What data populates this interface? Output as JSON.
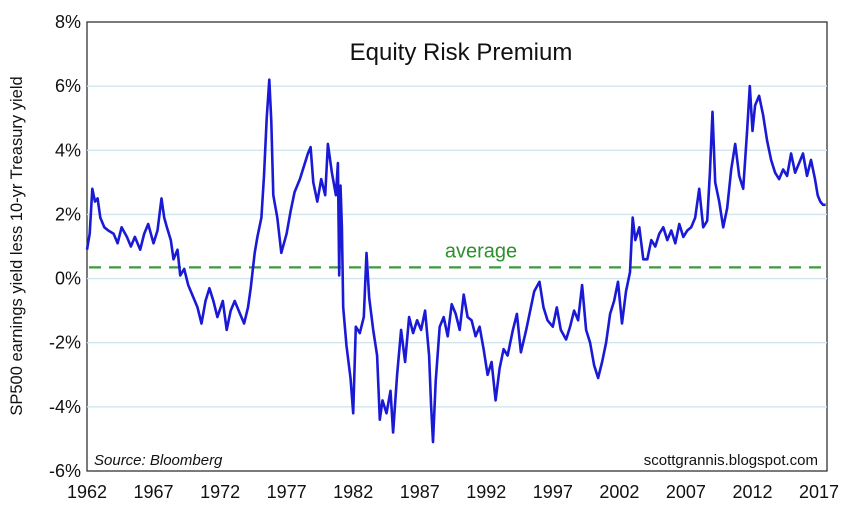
{
  "chart_data": {
    "type": "line",
    "title": "Equity Risk Premium",
    "ylabel": "SP500 earnings yield less 10-yr Treasury yield",
    "source": "Source: Bloomberg",
    "website": "scottgrannis.blogspot.com",
    "xlim": [
      1962,
      2017.6
    ],
    "ylim": [
      -6,
      8
    ],
    "x_ticks": [
      1962,
      1967,
      1972,
      1977,
      1982,
      1987,
      1992,
      1997,
      2002,
      2007,
      2012,
      2017
    ],
    "x_tick_labels": [
      "1962",
      "1967",
      "1972",
      "1977",
      "1982",
      "1987",
      "1992",
      "1997",
      "2002",
      "2007",
      "2012",
      "2017"
    ],
    "y_ticks": [
      -6,
      -4,
      -2,
      0,
      2,
      4,
      6,
      8
    ],
    "y_tick_labels": [
      "-6%",
      "-4%",
      "-2%",
      "0%",
      "2%",
      "4%",
      "6%",
      "8%"
    ],
    "grid": true,
    "colors": {
      "series": "#1a1ad6",
      "average": "#3c9a3c",
      "grid": "#cfe6ee"
    },
    "average": {
      "label": "average",
      "value": 0.35
    },
    "series": [
      {
        "values": [
          [
            1962.0,
            0.9
          ],
          [
            1962.2,
            1.4
          ],
          [
            1962.4,
            2.8
          ],
          [
            1962.6,
            2.4
          ],
          [
            1962.8,
            2.5
          ],
          [
            1963.0,
            1.9
          ],
          [
            1963.3,
            1.6
          ],
          [
            1963.6,
            1.5
          ],
          [
            1964.0,
            1.4
          ],
          [
            1964.3,
            1.1
          ],
          [
            1964.6,
            1.6
          ],
          [
            1965.0,
            1.3
          ],
          [
            1965.3,
            1.0
          ],
          [
            1965.6,
            1.3
          ],
          [
            1966.0,
            0.9
          ],
          [
            1966.3,
            1.4
          ],
          [
            1966.6,
            1.7
          ],
          [
            1967.0,
            1.1
          ],
          [
            1967.3,
            1.5
          ],
          [
            1967.6,
            2.5
          ],
          [
            1967.8,
            1.9
          ],
          [
            1968.0,
            1.6
          ],
          [
            1968.3,
            1.2
          ],
          [
            1968.5,
            0.6
          ],
          [
            1968.8,
            0.9
          ],
          [
            1969.0,
            0.1
          ],
          [
            1969.3,
            0.3
          ],
          [
            1969.6,
            -0.2
          ],
          [
            1970.0,
            -0.6
          ],
          [
            1970.3,
            -0.9
          ],
          [
            1970.6,
            -1.4
          ],
          [
            1970.9,
            -0.7
          ],
          [
            1971.2,
            -0.3
          ],
          [
            1971.5,
            -0.7
          ],
          [
            1971.8,
            -1.2
          ],
          [
            1972.2,
            -0.7
          ],
          [
            1972.5,
            -1.6
          ],
          [
            1972.8,
            -1.0
          ],
          [
            1973.1,
            -0.7
          ],
          [
            1973.4,
            -1.0
          ],
          [
            1973.8,
            -1.4
          ],
          [
            1974.1,
            -0.9
          ],
          [
            1974.3,
            -0.3
          ],
          [
            1974.6,
            0.8
          ],
          [
            1974.8,
            1.3
          ],
          [
            1975.1,
            1.9
          ],
          [
            1975.3,
            3.2
          ],
          [
            1975.5,
            5.0
          ],
          [
            1975.7,
            6.2
          ],
          [
            1975.85,
            4.9
          ],
          [
            1976.0,
            2.6
          ],
          [
            1976.3,
            1.9
          ],
          [
            1976.6,
            0.8
          ],
          [
            1977.0,
            1.4
          ],
          [
            1977.3,
            2.1
          ],
          [
            1977.6,
            2.7
          ],
          [
            1978.0,
            3.1
          ],
          [
            1978.3,
            3.5
          ],
          [
            1978.6,
            3.9
          ],
          [
            1978.8,
            4.1
          ],
          [
            1979.0,
            3.0
          ],
          [
            1979.3,
            2.4
          ],
          [
            1979.6,
            3.1
          ],
          [
            1979.9,
            2.6
          ],
          [
            1980.1,
            4.2
          ],
          [
            1980.4,
            3.3
          ],
          [
            1980.7,
            2.6
          ],
          [
            1980.85,
            3.6
          ],
          [
            1980.95,
            0.1
          ],
          [
            1981.05,
            2.9
          ],
          [
            1981.15,
            1.6
          ],
          [
            1981.25,
            -0.9
          ],
          [
            1981.5,
            -2.1
          ],
          [
            1981.8,
            -3.1
          ],
          [
            1982.0,
            -4.2
          ],
          [
            1982.2,
            -1.5
          ],
          [
            1982.5,
            -1.7
          ],
          [
            1982.8,
            -1.2
          ],
          [
            1983.0,
            0.8
          ],
          [
            1983.2,
            -0.6
          ],
          [
            1983.5,
            -1.6
          ],
          [
            1983.8,
            -2.4
          ],
          [
            1984.0,
            -4.4
          ],
          [
            1984.2,
            -3.8
          ],
          [
            1984.5,
            -4.2
          ],
          [
            1984.8,
            -3.5
          ],
          [
            1985.0,
            -4.8
          ],
          [
            1985.3,
            -3.0
          ],
          [
            1985.6,
            -1.6
          ],
          [
            1985.9,
            -2.6
          ],
          [
            1986.2,
            -1.2
          ],
          [
            1986.5,
            -1.7
          ],
          [
            1986.8,
            -1.3
          ],
          [
            1987.1,
            -1.6
          ],
          [
            1987.4,
            -1.0
          ],
          [
            1987.7,
            -2.4
          ],
          [
            1987.85,
            -3.9
          ],
          [
            1988.0,
            -5.1
          ],
          [
            1988.2,
            -3.2
          ],
          [
            1988.5,
            -1.5
          ],
          [
            1988.8,
            -1.2
          ],
          [
            1989.1,
            -1.8
          ],
          [
            1989.4,
            -0.8
          ],
          [
            1989.7,
            -1.1
          ],
          [
            1990.0,
            -1.6
          ],
          [
            1990.3,
            -0.5
          ],
          [
            1990.6,
            -1.2
          ],
          [
            1990.9,
            -1.3
          ],
          [
            1991.2,
            -1.8
          ],
          [
            1991.5,
            -1.5
          ],
          [
            1991.8,
            -2.2
          ],
          [
            1992.1,
            -3.0
          ],
          [
            1992.4,
            -2.6
          ],
          [
            1992.7,
            -3.8
          ],
          [
            1993.0,
            -2.8
          ],
          [
            1993.3,
            -2.2
          ],
          [
            1993.6,
            -2.4
          ],
          [
            1994.0,
            -1.6
          ],
          [
            1994.3,
            -1.1
          ],
          [
            1994.6,
            -2.3
          ],
          [
            1995.0,
            -1.6
          ],
          [
            1995.3,
            -1.0
          ],
          [
            1995.6,
            -0.4
          ],
          [
            1996.0,
            -0.1
          ],
          [
            1996.3,
            -0.9
          ],
          [
            1996.6,
            -1.3
          ],
          [
            1997.0,
            -1.5
          ],
          [
            1997.3,
            -0.9
          ],
          [
            1997.6,
            -1.6
          ],
          [
            1998.0,
            -1.9
          ],
          [
            1998.3,
            -1.5
          ],
          [
            1998.6,
            -1.0
          ],
          [
            1998.9,
            -1.3
          ],
          [
            1999.2,
            -0.2
          ],
          [
            1999.5,
            -1.6
          ],
          [
            1999.8,
            -2.0
          ],
          [
            2000.1,
            -2.7
          ],
          [
            2000.4,
            -3.1
          ],
          [
            2000.7,
            -2.6
          ],
          [
            2001.0,
            -2.0
          ],
          [
            2001.3,
            -1.1
          ],
          [
            2001.6,
            -0.7
          ],
          [
            2001.9,
            -0.1
          ],
          [
            2002.2,
            -1.4
          ],
          [
            2002.5,
            -0.4
          ],
          [
            2002.8,
            0.2
          ],
          [
            2003.0,
            1.9
          ],
          [
            2003.2,
            1.2
          ],
          [
            2003.5,
            1.6
          ],
          [
            2003.8,
            0.6
          ],
          [
            2004.1,
            0.6
          ],
          [
            2004.4,
            1.2
          ],
          [
            2004.7,
            1.0
          ],
          [
            2005.0,
            1.4
          ],
          [
            2005.3,
            1.6
          ],
          [
            2005.6,
            1.2
          ],
          [
            2005.9,
            1.5
          ],
          [
            2006.2,
            1.1
          ],
          [
            2006.5,
            1.7
          ],
          [
            2006.8,
            1.3
          ],
          [
            2007.1,
            1.5
          ],
          [
            2007.4,
            1.6
          ],
          [
            2007.7,
            1.9
          ],
          [
            2008.0,
            2.8
          ],
          [
            2008.3,
            1.6
          ],
          [
            2008.6,
            1.8
          ],
          [
            2008.8,
            3.3
          ],
          [
            2009.0,
            5.2
          ],
          [
            2009.2,
            3.0
          ],
          [
            2009.5,
            2.4
          ],
          [
            2009.8,
            1.6
          ],
          [
            2010.1,
            2.2
          ],
          [
            2010.4,
            3.4
          ],
          [
            2010.7,
            4.2
          ],
          [
            2011.0,
            3.2
          ],
          [
            2011.3,
            2.8
          ],
          [
            2011.6,
            4.6
          ],
          [
            2011.8,
            6.0
          ],
          [
            2012.0,
            4.6
          ],
          [
            2012.2,
            5.4
          ],
          [
            2012.5,
            5.7
          ],
          [
            2012.8,
            5.1
          ],
          [
            2013.1,
            4.3
          ],
          [
            2013.4,
            3.7
          ],
          [
            2013.7,
            3.3
          ],
          [
            2014.0,
            3.1
          ],
          [
            2014.3,
            3.4
          ],
          [
            2014.6,
            3.2
          ],
          [
            2014.9,
            3.9
          ],
          [
            2015.2,
            3.3
          ],
          [
            2015.5,
            3.6
          ],
          [
            2015.8,
            3.9
          ],
          [
            2016.1,
            3.2
          ],
          [
            2016.4,
            3.7
          ],
          [
            2016.7,
            3.1
          ],
          [
            2016.9,
            2.6
          ],
          [
            2017.1,
            2.4
          ],
          [
            2017.3,
            2.3
          ],
          [
            2017.5,
            2.3
          ]
        ]
      }
    ]
  }
}
